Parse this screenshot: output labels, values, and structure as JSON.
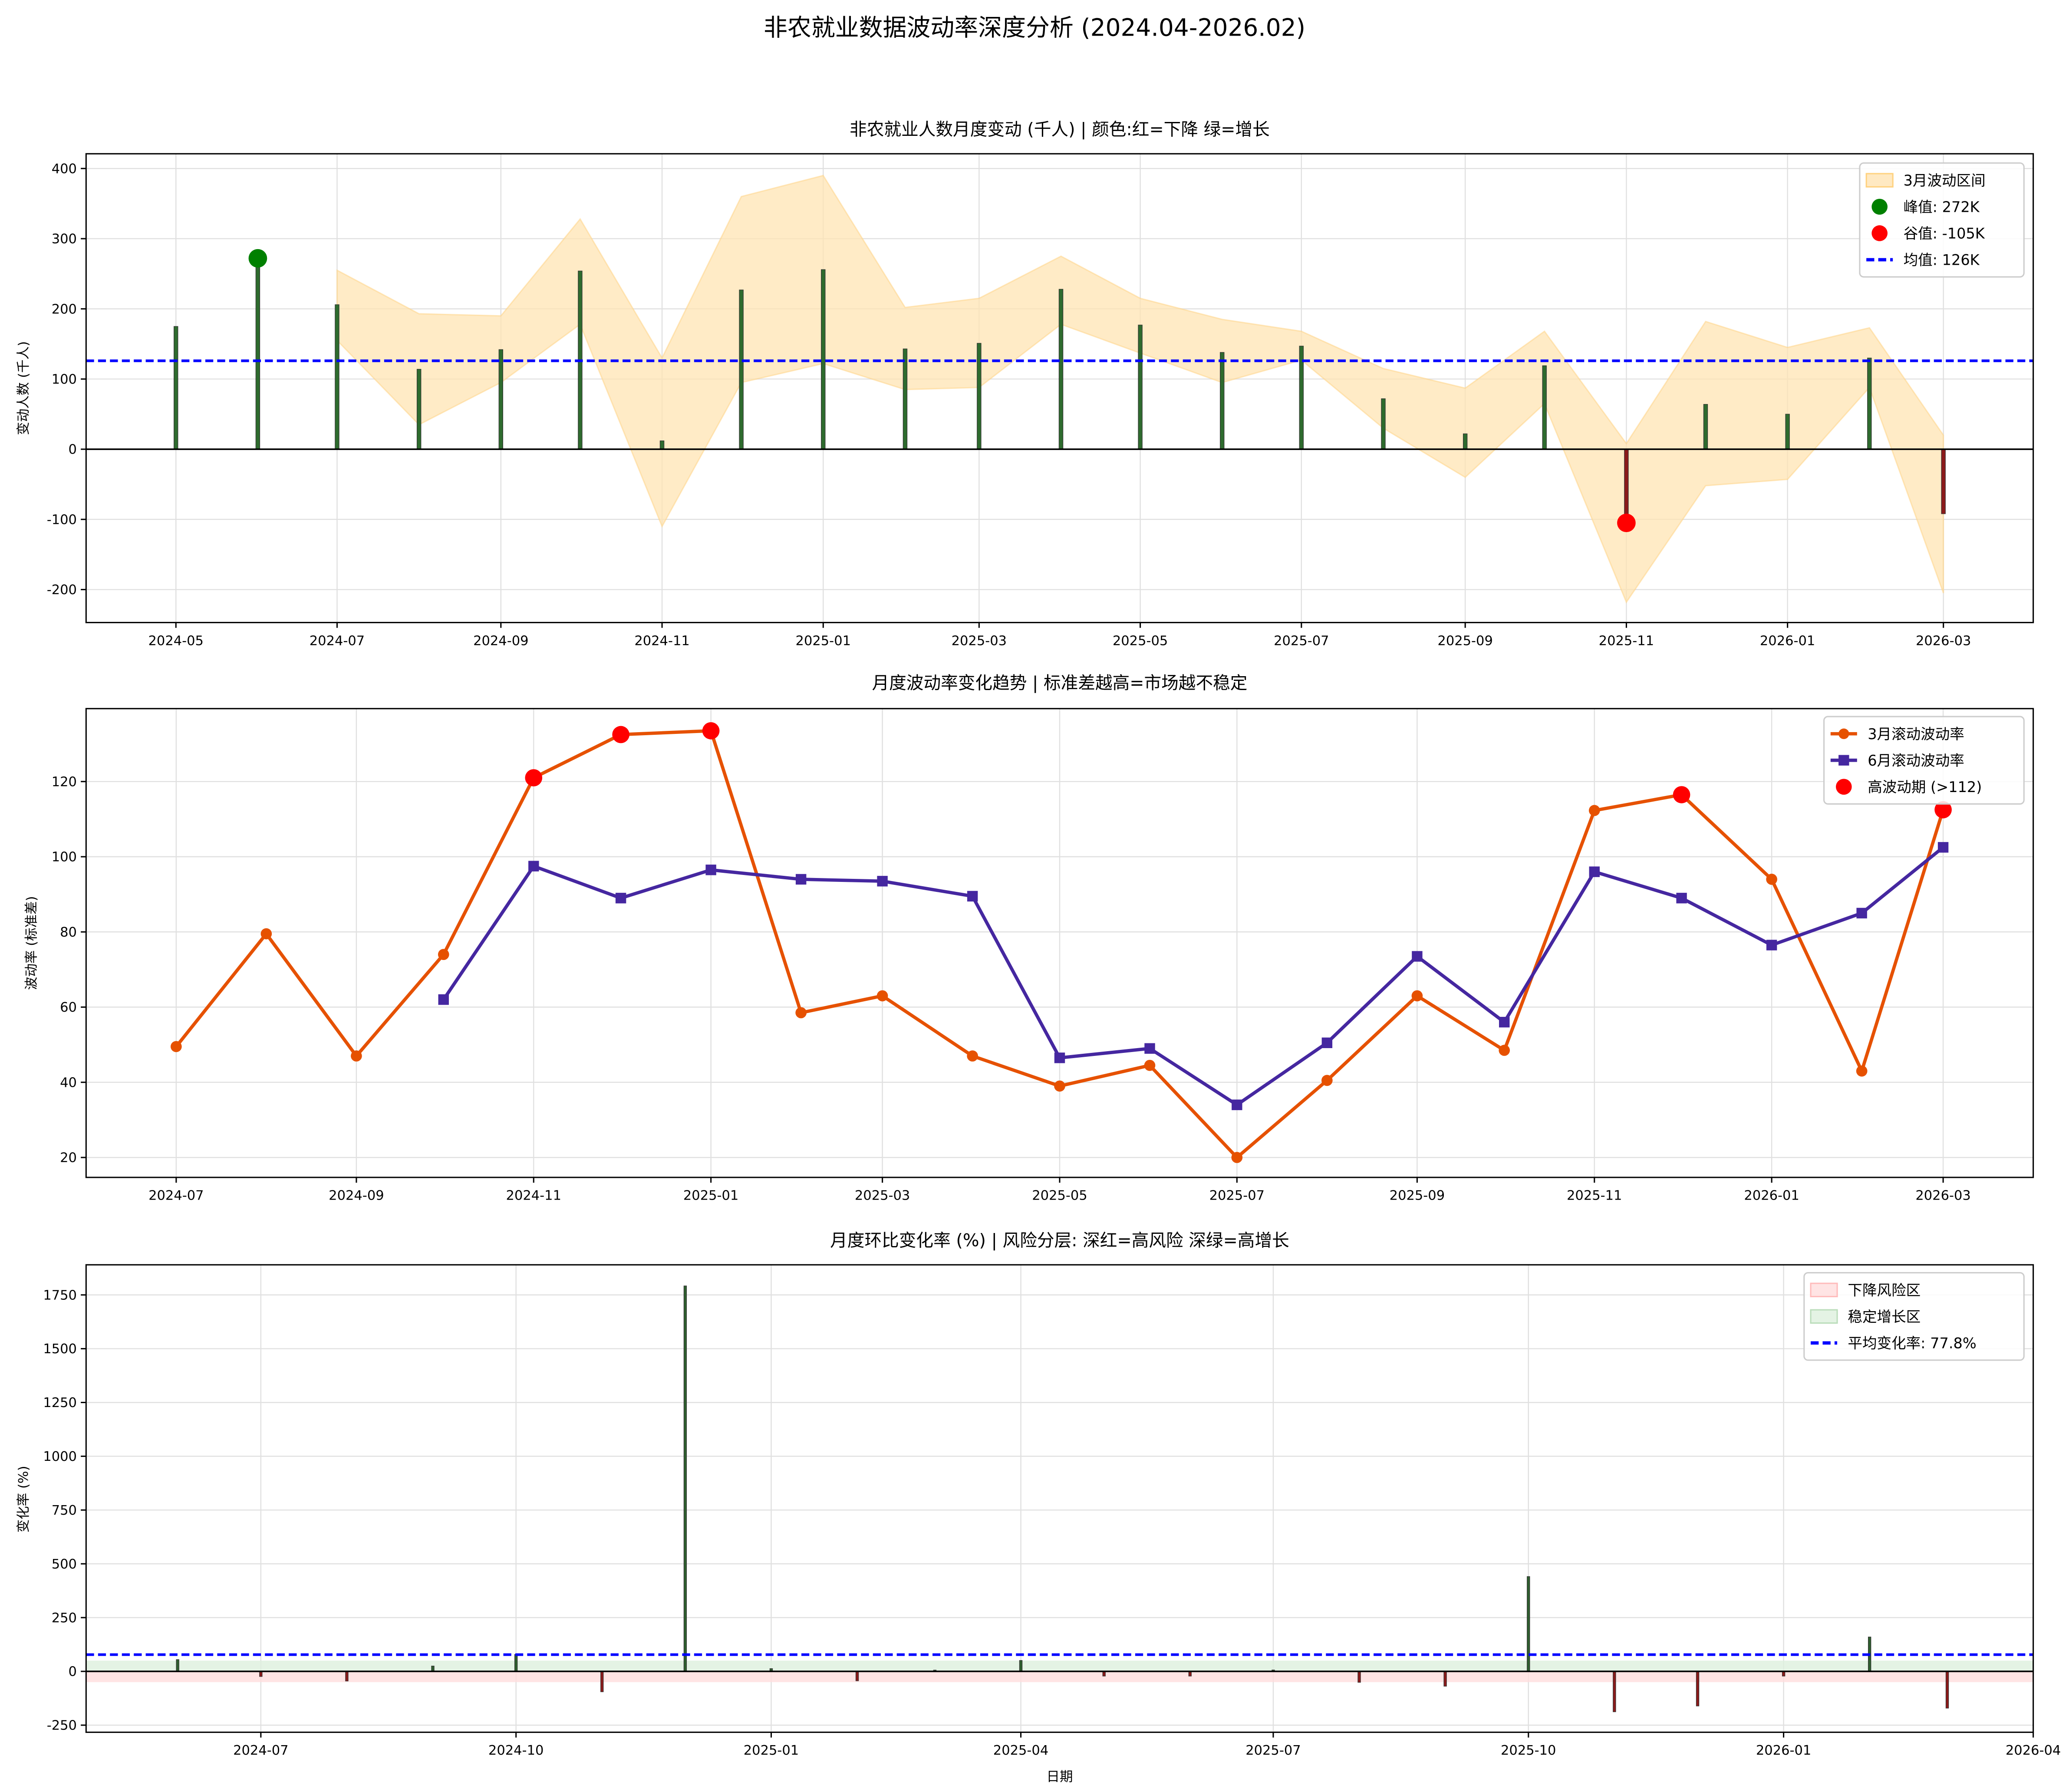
{
  "title": "非农就业数据波动率深度分析 (2024.04-2026.02)",
  "colors": {
    "positive": "#2e6b2e",
    "negative": "#8b1a1a",
    "band": "#ffe4b3",
    "mean": "#0000ff",
    "peak": "#008000",
    "trough": "#ff0000",
    "vol3": "#e65100",
    "vol6": "#4527a0",
    "high": "#ff0000",
    "risk": "#ffdddd",
    "growth": "#ddf0dd"
  },
  "chart_data": [
    {
      "type": "bar",
      "title": "非农就业人数月度变动 (千人) | 颜色:红=下降 绿=增长",
      "ylabel": "变动人数 (千人)",
      "ylim": [
        -247,
        421
      ],
      "xlim": [
        "2024-03-28",
        "2026-04-04"
      ],
      "grid": true,
      "legend_placement": "top-right",
      "x": [
        "2024-05",
        "2024-06",
        "2024-07",
        "2024-08",
        "2024-09",
        "2024-10",
        "2024-11",
        "2024-12",
        "2025-01",
        "2025-02",
        "2025-03",
        "2025-04",
        "2025-05",
        "2025-06",
        "2025-07",
        "2025-08",
        "2025-09",
        "2025-10",
        "2025-11",
        "2025-12",
        "2026-01",
        "2026-02",
        "2026-03"
      ],
      "values": [
        175,
        272,
        206,
        114,
        142,
        254,
        12,
        227,
        256,
        143,
        151,
        228,
        177,
        138,
        147,
        72,
        22,
        119,
        -105,
        64,
        50,
        130,
        -92
      ],
      "band": {
        "name": "3月波动区间",
        "x": [
          "2024-07",
          "2024-08",
          "2024-09",
          "2024-10",
          "2024-11",
          "2024-12",
          "2025-01",
          "2025-02",
          "2025-03",
          "2025-04",
          "2025-05",
          "2025-06",
          "2025-07",
          "2025-08",
          "2025-09",
          "2025-10",
          "2025-11",
          "2025-12",
          "2026-01",
          "2026-02",
          "2026-03"
        ],
        "upper": [
          255,
          193,
          190,
          328,
          130,
          360,
          390,
          202,
          215,
          275,
          215,
          185,
          168,
          115,
          87,
          168,
          8,
          182,
          145,
          173,
          20
        ],
        "lower": [
          155,
          35,
          95,
          178,
          -110,
          95,
          122,
          85,
          88,
          178,
          137,
          95,
          127,
          30,
          -40,
          65,
          -218,
          -52,
          -43,
          88,
          -205
        ]
      },
      "peak": {
        "x": "2024-06",
        "value": 272,
        "label": "峰值: 272K"
      },
      "trough": {
        "x": "2025-11",
        "value": -105,
        "label": "谷值: -105K"
      },
      "mean": {
        "value": 126,
        "label": "均值: 126K"
      },
      "xticks": [
        "2024-05",
        "2024-07",
        "2024-09",
        "2024-11",
        "2025-01",
        "2025-03",
        "2025-05",
        "2025-07",
        "2025-09",
        "2025-11",
        "2026-01",
        "2026-03"
      ],
      "yticks": [
        -200,
        -100,
        0,
        100,
        200,
        300,
        400
      ]
    },
    {
      "type": "line",
      "title": "月度波动率变化趋势 | 标准差越高=市场越不稳定",
      "ylabel": "波动率 (标准差)",
      "ylim": [
        14.7,
        139.4
      ],
      "xlim": [
        "2024-05-31",
        "2026-04-01"
      ],
      "grid": true,
      "legend_placement": "top-right",
      "series": [
        {
          "name": "3月滚动波动率",
          "x": [
            "2024-07",
            "2024-08",
            "2024-09",
            "2024-10",
            "2024-11",
            "2024-12",
            "2025-01",
            "2025-02",
            "2025-03",
            "2025-04",
            "2025-05",
            "2025-06",
            "2025-07",
            "2025-08",
            "2025-09",
            "2025-10",
            "2025-11",
            "2025-12",
            "2026-01",
            "2026-02",
            "2026-03"
          ],
          "values": [
            49.5,
            79.5,
            47,
            74,
            121,
            132.5,
            133.5,
            58.5,
            63,
            47,
            39,
            44.5,
            20,
            40.5,
            63,
            48.5,
            112.3,
            116.5,
            94,
            43,
            112.5
          ]
        },
        {
          "name": "6月滚动波动率",
          "x": [
            "2024-10",
            "2024-11",
            "2024-12",
            "2025-01",
            "2025-02",
            "2025-03",
            "2025-04",
            "2025-05",
            "2025-06",
            "2025-07",
            "2025-08",
            "2025-09",
            "2025-10",
            "2025-11",
            "2025-12",
            "2026-01",
            "2026-02",
            "2026-03"
          ],
          "values": [
            62,
            97.5,
            89,
            96.5,
            94,
            93.5,
            89.5,
            46.5,
            49,
            34,
            50.5,
            73.5,
            56,
            96,
            89,
            76.5,
            85,
            102.5
          ]
        }
      ],
      "high_volatility": {
        "name": "高波动期 (>112)",
        "x": [
          "2024-11",
          "2024-12",
          "2025-01",
          "2025-12",
          "2026-03"
        ],
        "values": [
          121,
          132.5,
          133.5,
          116.5,
          112.5
        ]
      },
      "xticks": [
        "2024-07",
        "2024-09",
        "2024-11",
        "2025-01",
        "2025-03",
        "2025-05",
        "2025-07",
        "2025-09",
        "2025-11",
        "2026-01",
        "2026-03"
      ],
      "yticks": [
        20,
        40,
        60,
        80,
        100,
        120
      ]
    },
    {
      "type": "bar",
      "title": "月度环比变化率 (%) | 风险分层: 深红=高风险 深绿=高增长",
      "xlabel": "日期",
      "ylabel": "变化率 (%)",
      "ylim": [
        -283,
        1890
      ],
      "xlim": [
        "2024-04-29",
        "2026-04-01"
      ],
      "grid": true,
      "legend_placement": "top-right",
      "x": [
        "2024-06",
        "2024-07",
        "2024-08",
        "2024-09",
        "2024-10",
        "2024-11",
        "2024-12",
        "2025-01",
        "2025-02",
        "2025-03",
        "2025-04",
        "2025-05",
        "2025-06",
        "2025-07",
        "2025-08",
        "2025-09",
        "2025-10",
        "2025-11",
        "2025-12",
        "2026-01",
        "2026-02",
        "2026-03"
      ],
      "values": [
        55,
        -24,
        -45,
        25,
        79,
        -95,
        1792,
        13,
        -44,
        6,
        51,
        -22,
        -22,
        6.5,
        -51,
        -69,
        441,
        -188,
        -161,
        -22,
        160,
        -171
      ],
      "zones": [
        {
          "name": "下降风险区",
          "range": [
            -50,
            0
          ]
        },
        {
          "name": "稳定增长区",
          "range": [
            0,
            50
          ]
        }
      ],
      "mean": {
        "value": 77.8,
        "label": "平均变化率: 77.8%"
      },
      "xticks": [
        "2024-07",
        "2024-10",
        "2025-01",
        "2025-04",
        "2025-07",
        "2025-10",
        "2026-01",
        "2026-04"
      ],
      "yticks": [
        -250,
        0,
        250,
        500,
        750,
        1000,
        1250,
        1500,
        1750
      ]
    }
  ]
}
